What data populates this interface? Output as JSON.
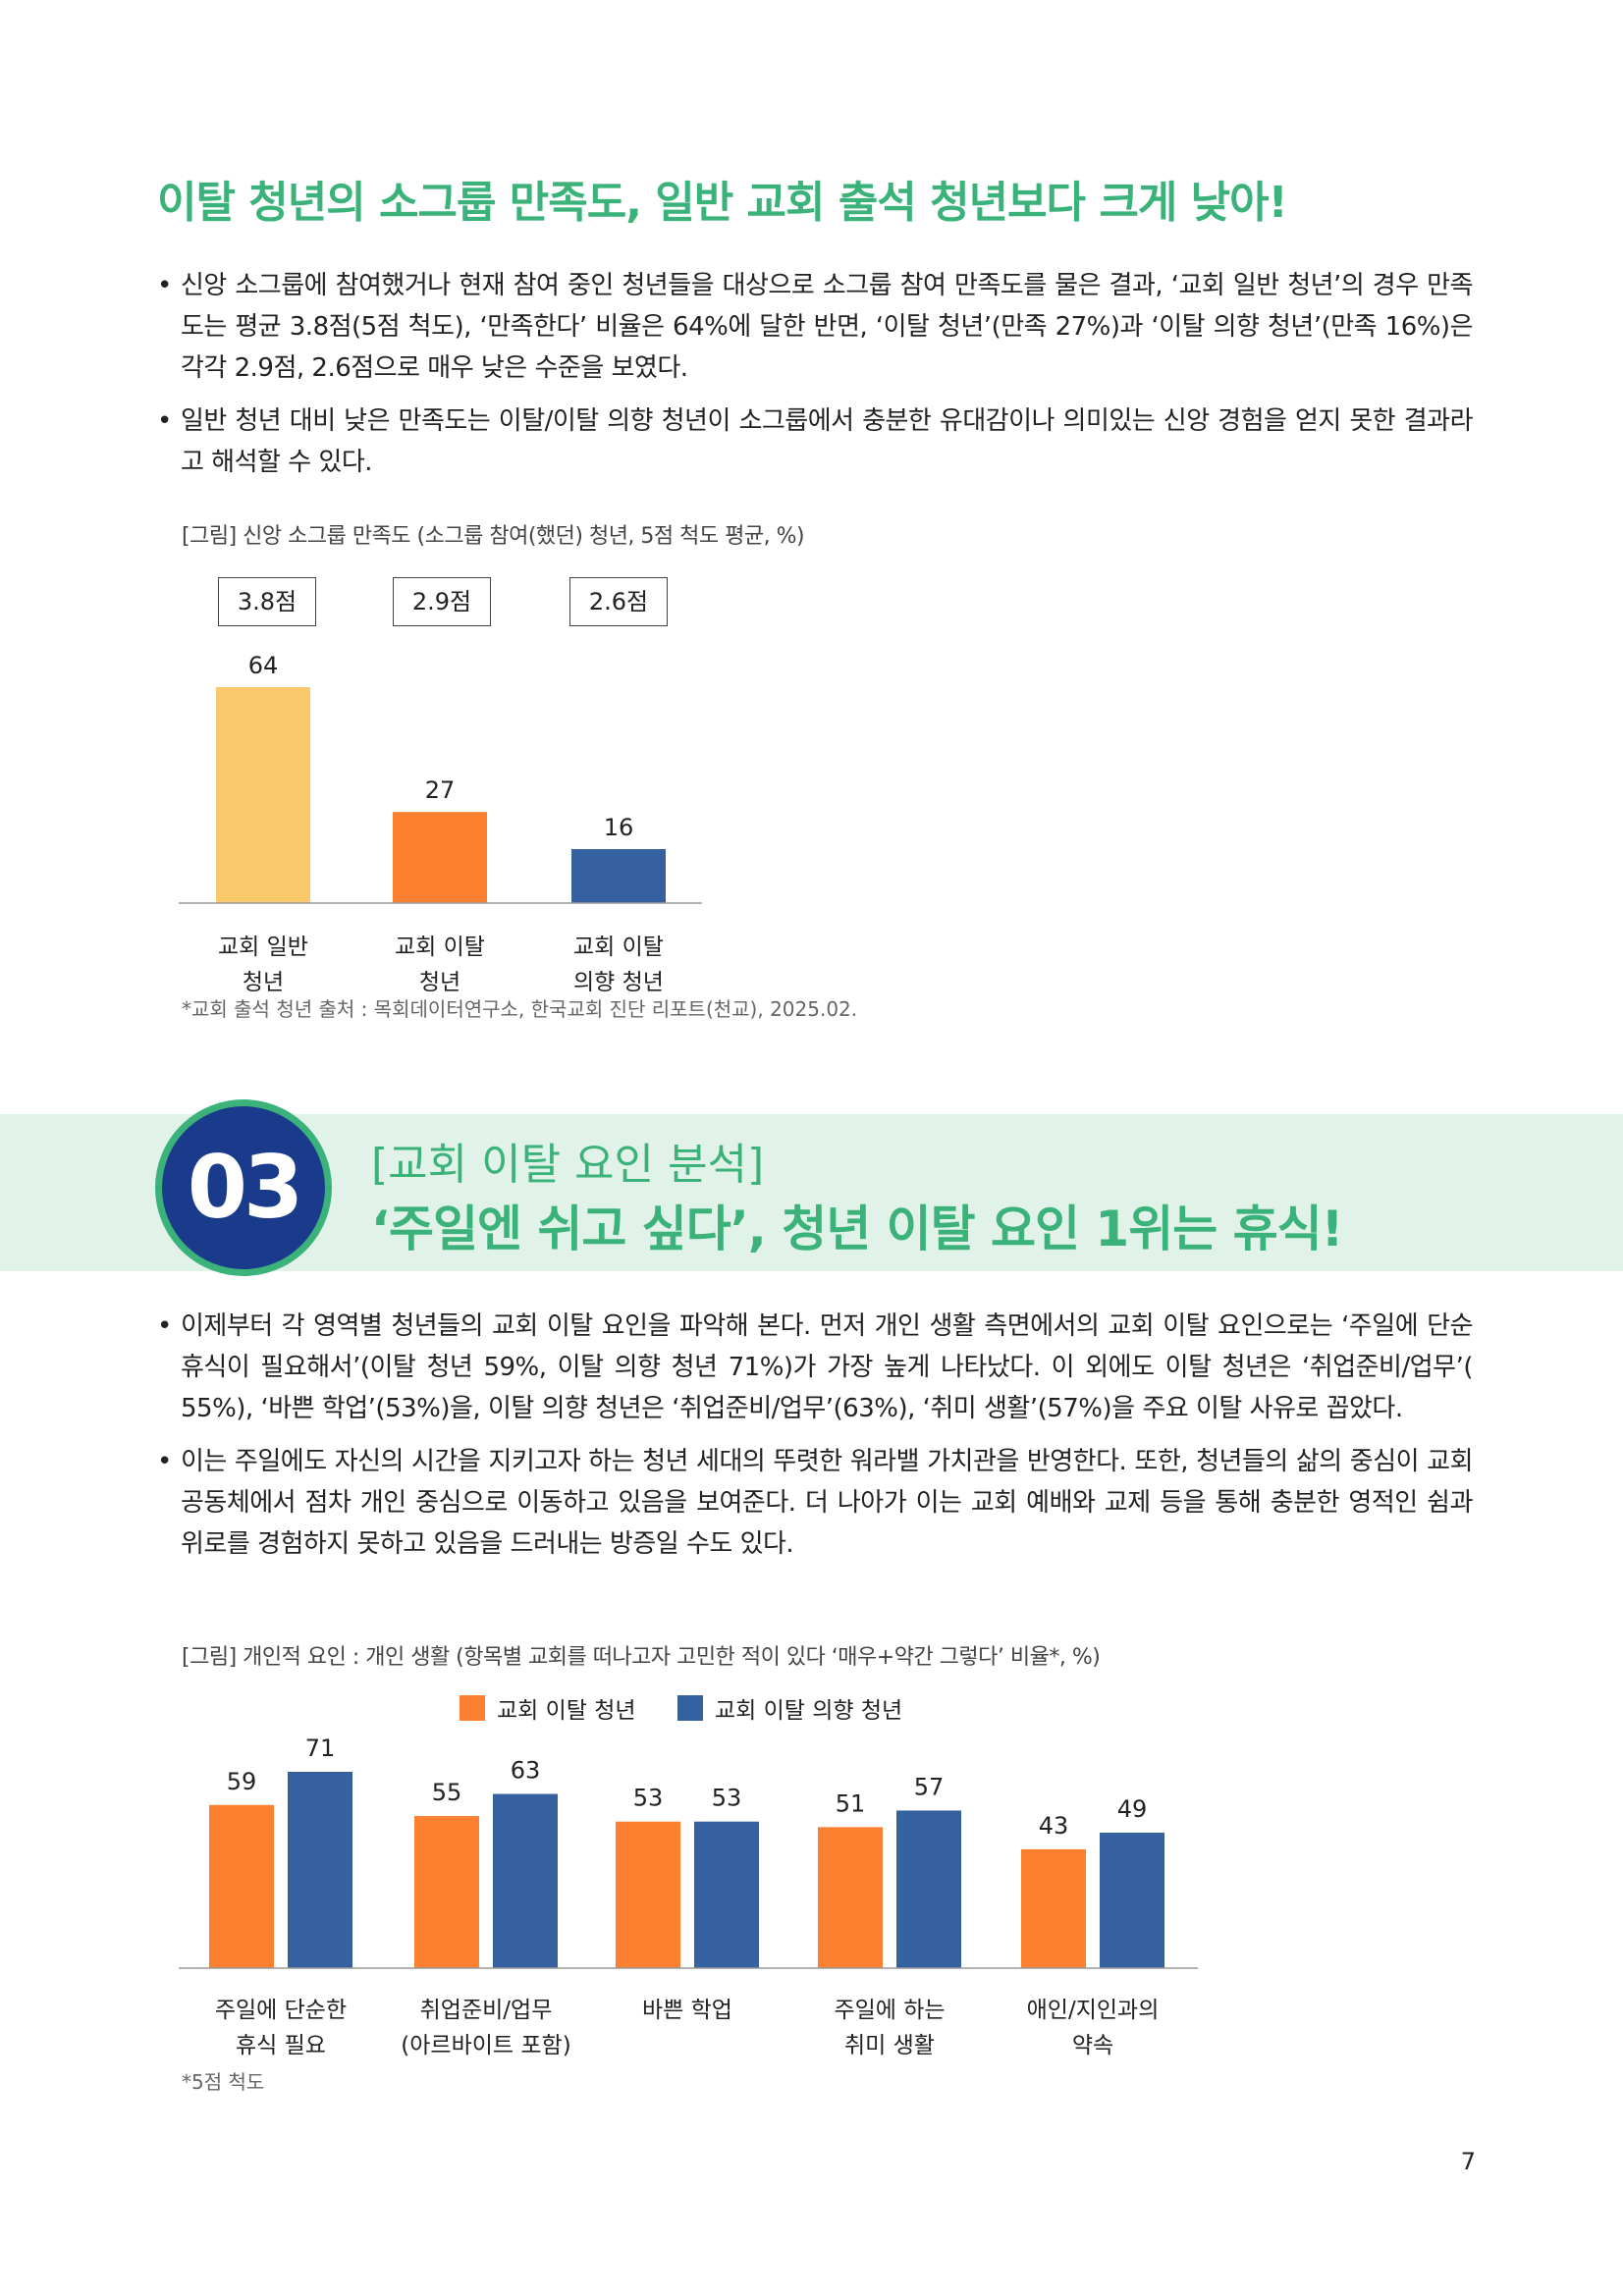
{
  "headline": "이탈 청년의 소그룹 만족도, 일반 교회 출석 청년보다 크게 낮아!",
  "section1_bullets": [
    "신앙 소그룹에 참여했거나 현재 참여 중인 청년들을 대상으로 소그룹 참여 만족도를 물은 결과, ‘교회 일반 청년’의 경우 만족도는 평균 3.8점(5점 척도), ‘만족한다’ 비율은 64%에 달한 반면, ‘이탈 청년’(만족 27%)과 ‘이탈 의향 청년’(만족 16%)은 각각 2.9점, 2.6점으로 매우 낮은 수준을 보였다.",
    "일반 청년 대비 낮은 만족도는 이탈/이탈 의향 청년이 소그룹에서 충분한 유대감이나 의미있는 신앙 경험을 얻지 못한 결과라고 해석할 수 있다."
  ],
  "chart1_caption": "[그림] 신앙 소그룹 만족도 (소그룹 참여(했던) 청년, 5점 척도 평균, %)",
  "chart1_scores": [
    "3.8점",
    "2.9점",
    "2.6점"
  ],
  "chart1_source": "*교회 출석 청년 출처 : 목회데이터연구소, 한국교회 진단 리포트(천교), 2025.02.",
  "section_header": {
    "number": "03",
    "subtitle": "[교회 이탈 요인 분석]",
    "title": "‘주일엔 쉬고 싶다’, 청년 이탈 요인 1위는 휴식!"
  },
  "section2_bullets": [
    "이제부터 각 영역별 청년들의 교회 이탈 요인을 파악해 본다. 먼저 개인 생활 측면에서의 교회 이탈 요인으로는 ‘주일에 단순 휴식이 필요해서’(이탈 청년 59%, 이탈 의향 청년 71%)가 가장 높게 나타났다. 이 외에도 이탈 청년은 ‘취업준비/업무’( 55%), ‘바쁜 학업’(53%)을, 이탈 의향 청년은 ‘취업준비/업무’(63%), ‘취미 생활’(57%)을 주요 이탈 사유로 꼽았다.",
    "이는 주일에도 자신의 시간을 지키고자 하는 청년 세대의 뚜렷한 워라밸 가치관을 반영한다. 또한, 청년들의 삶의 중심이 교회 공동체에서 점차 개인 중심으로 이동하고 있음을 보여준다. 더 나아가 이는 교회 예배와 교제 등을 통해 충분한 영적인 쉼과 위로를 경험하지 못하고 있음을 드러내는 방증일 수도 있다."
  ],
  "chart2_caption": "[그림] 개인적 요인 : 개인 생활 (항목별 교회를 떠나고자 고민한 적이 있다 ‘매우+약간 그렇다’ 비율*, %)",
  "chart2_note": "*5점 척도",
  "page_number": "7",
  "chart_data": [
    {
      "type": "bar",
      "title": "[그림] 신앙 소그룹 만족도 (소그룹 참여(했던) 청년, 5점 척도 평균, %)",
      "categories": [
        [
          "교회 일반",
          "청년"
        ],
        [
          "교회 이탈",
          "청년"
        ],
        [
          "교회 이탈",
          "의향 청년"
        ]
      ],
      "values": [
        64,
        27,
        16
      ],
      "colors": [
        "#f9c96b",
        "#fd7f30",
        "#3561a0"
      ],
      "ylim": [
        0,
        64
      ]
    },
    {
      "type": "bar",
      "title": "[그림] 개인적 요인 : 개인 생활 (항목별 교회를 떠나고자 고민한 적이 있다 ‘매우+약간 그렇다’ 비율*, %)",
      "categories": [
        [
          "주일에 단순한",
          "휴식 필요"
        ],
        [
          "취업준비/업무",
          "(아르바이트 포함)"
        ],
        [
          "바쁜 학업"
        ],
        [
          "주일에 하는",
          "취미 생활"
        ],
        [
          "애인/지인과의",
          "약속"
        ]
      ],
      "series": [
        {
          "name": "교회 이탈 청년",
          "color": "#fd7f30",
          "values": [
            59,
            55,
            53,
            51,
            43
          ]
        },
        {
          "name": "교회 이탈 의향 청년",
          "color": "#3561a0",
          "values": [
            71,
            63,
            53,
            57,
            49
          ]
        }
      ],
      "legend": "top",
      "ylim": [
        0,
        71
      ]
    }
  ]
}
